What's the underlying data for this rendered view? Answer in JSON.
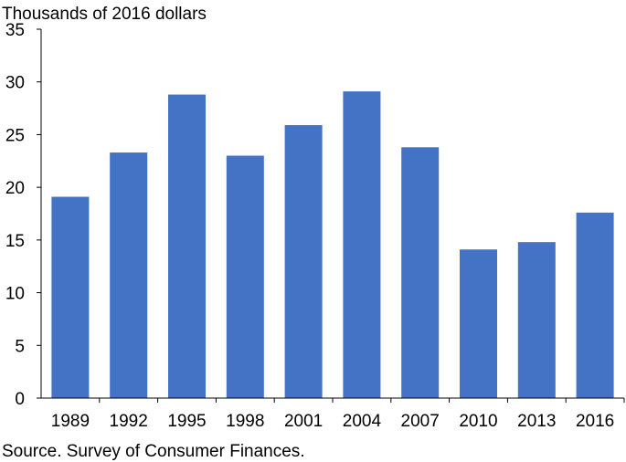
{
  "chart_data": {
    "type": "bar",
    "unit_label": "Thousands of 2016 dollars",
    "categories": [
      "1989",
      "1992",
      "1995",
      "1998",
      "2001",
      "2004",
      "2007",
      "2010",
      "2013",
      "2016"
    ],
    "values": [
      19.1,
      23.3,
      28.8,
      23.0,
      25.9,
      29.1,
      23.8,
      14.1,
      14.8,
      17.6
    ],
    "ylim": [
      0,
      35
    ],
    "yticks": [
      0,
      5,
      10,
      15,
      20,
      25,
      30,
      35
    ],
    "grid": false,
    "bar_color": "#4472C4",
    "source": "Source. Survey of Consumer Finances."
  }
}
